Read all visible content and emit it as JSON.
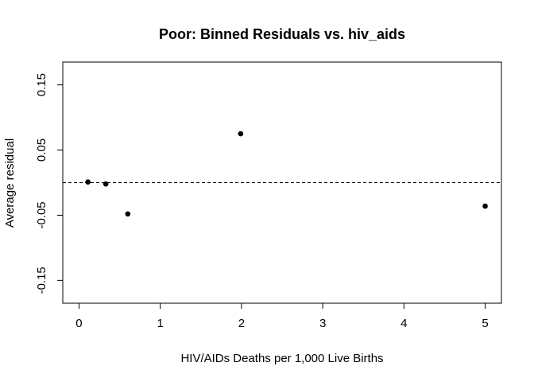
{
  "chart_data": {
    "type": "scatter",
    "title": "Poor: Binned Residuals vs. hiv_aids",
    "xlabel": "HIV/AIDs Deaths per 1,000 Live Births",
    "ylabel": "Average residual",
    "xlim": [
      -0.2,
      5.2
    ],
    "ylim": [
      -0.185,
      0.185
    ],
    "xticks": [
      0,
      1,
      2,
      3,
      4,
      5
    ],
    "xtick_labels": [
      "0",
      "1",
      "2",
      "3",
      "4",
      "5"
    ],
    "yticks": [
      -0.15,
      -0.05,
      0.05,
      0.15
    ],
    "ytick_labels": [
      "-0.15",
      "-0.05",
      "0.05",
      "0.15"
    ],
    "reference_line": {
      "y": 0,
      "style": "dashed"
    },
    "grid": false,
    "points": [
      {
        "x": 0.11,
        "y": 0.001
      },
      {
        "x": 0.33,
        "y": -0.002
      },
      {
        "x": 0.6,
        "y": -0.048
      },
      {
        "x": 1.99,
        "y": 0.075
      },
      {
        "x": 5.0,
        "y": -0.036
      }
    ]
  }
}
